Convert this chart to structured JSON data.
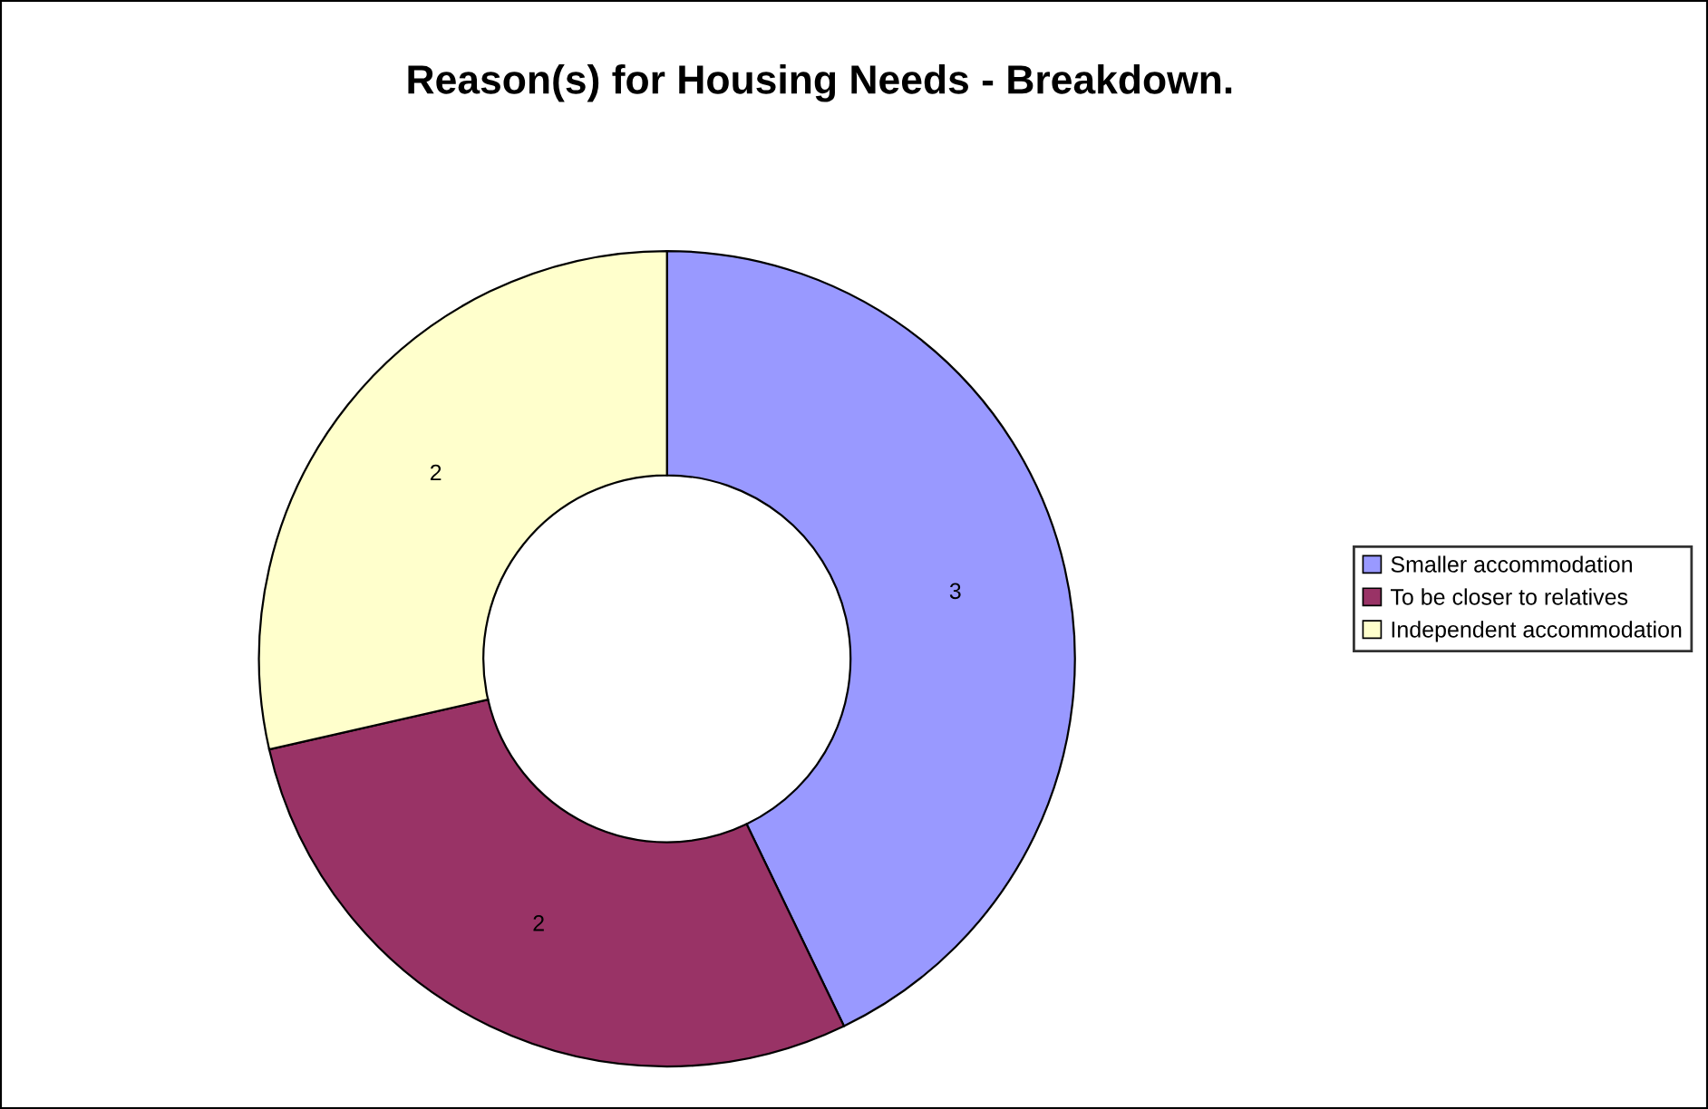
{
  "chart_data": {
    "type": "donut",
    "title": "Reason(s) for Housing Needs - Breakdown.",
    "categories": [
      "Smaller accommodation",
      "To be closer to relatives",
      "Independent accommodation"
    ],
    "values": [
      3,
      2,
      2
    ],
    "colors": [
      "#9999ff",
      "#993366",
      "#ffffcc"
    ],
    "data_labels": true,
    "legend": "right"
  }
}
